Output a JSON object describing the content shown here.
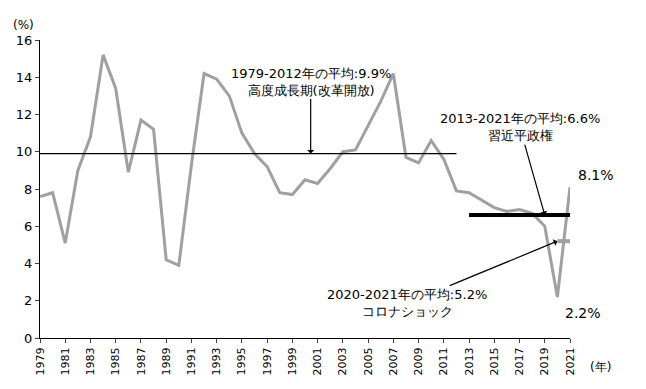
{
  "chart_data": {
    "type": "line",
    "x": [
      1979,
      1980,
      1981,
      1982,
      1983,
      1984,
      1985,
      1986,
      1987,
      1988,
      1989,
      1990,
      1991,
      1992,
      1993,
      1994,
      1995,
      1996,
      1997,
      1998,
      1999,
      2000,
      2001,
      2002,
      2003,
      2004,
      2005,
      2006,
      2007,
      2008,
      2009,
      2010,
      2011,
      2012,
      2013,
      2014,
      2015,
      2016,
      2017,
      2018,
      2019,
      2020,
      2021
    ],
    "values": [
      7.6,
      7.8,
      5.1,
      9.0,
      10.8,
      15.2,
      13.4,
      8.9,
      11.7,
      11.2,
      4.2,
      3.9,
      9.3,
      14.2,
      13.9,
      13.0,
      11.0,
      9.9,
      9.2,
      7.8,
      7.7,
      8.5,
      8.3,
      9.1,
      10.0,
      10.1,
      11.4,
      12.7,
      14.2,
      9.7,
      9.4,
      10.6,
      9.6,
      7.9,
      7.8,
      7.4,
      7.0,
      6.8,
      6.9,
      6.7,
      6.0,
      2.2,
      8.1
    ],
    "value_labels": [
      null,
      null,
      null,
      null,
      null,
      null,
      null,
      null,
      null,
      null,
      null,
      null,
      null,
      null,
      null,
      null,
      null,
      null,
      null,
      null,
      null,
      null,
      null,
      null,
      null,
      null,
      null,
      null,
      null,
      null,
      null,
      null,
      null,
      null,
      null,
      null,
      null,
      null,
      null,
      null,
      null,
      "2.2%",
      "8.1%"
    ],
    "color": "#a0a0a0",
    "ylabel": "(%)",
    "xlabel": "(年)",
    "xlim": [
      1979,
      2021
    ],
    "xticks": [
      1979,
      1981,
      1983,
      1985,
      1987,
      1989,
      1991,
      1993,
      1995,
      1997,
      1999,
      2001,
      2003,
      2005,
      2007,
      2009,
      2011,
      2013,
      2015,
      2017,
      2019,
      2021
    ],
    "ylim": [
      0,
      16
    ],
    "yticks": [
      0,
      2,
      4,
      6,
      8,
      10,
      12,
      14,
      16
    ],
    "grid": false,
    "averages": [
      {
        "value": 9.9,
        "x": [
          1979,
          2012
        ],
        "label": "1979-2012年の平均:9.9%",
        "caption": "高度成長期(改革開放)",
        "color": "#000000",
        "line_style": "thin"
      },
      {
        "value": 6.6,
        "x": [
          2013,
          2021
        ],
        "label": "2013-2021年の平均:6.6%",
        "caption": "習近平政権",
        "color": "#000000",
        "line_style": "thick"
      },
      {
        "value": 5.2,
        "x": [
          2020,
          2021
        ],
        "label": "2020-2021年の平均:5.2%",
        "caption": "コロナショック",
        "color": "#a0a0a0",
        "line_style": "thick"
      }
    ]
  }
}
